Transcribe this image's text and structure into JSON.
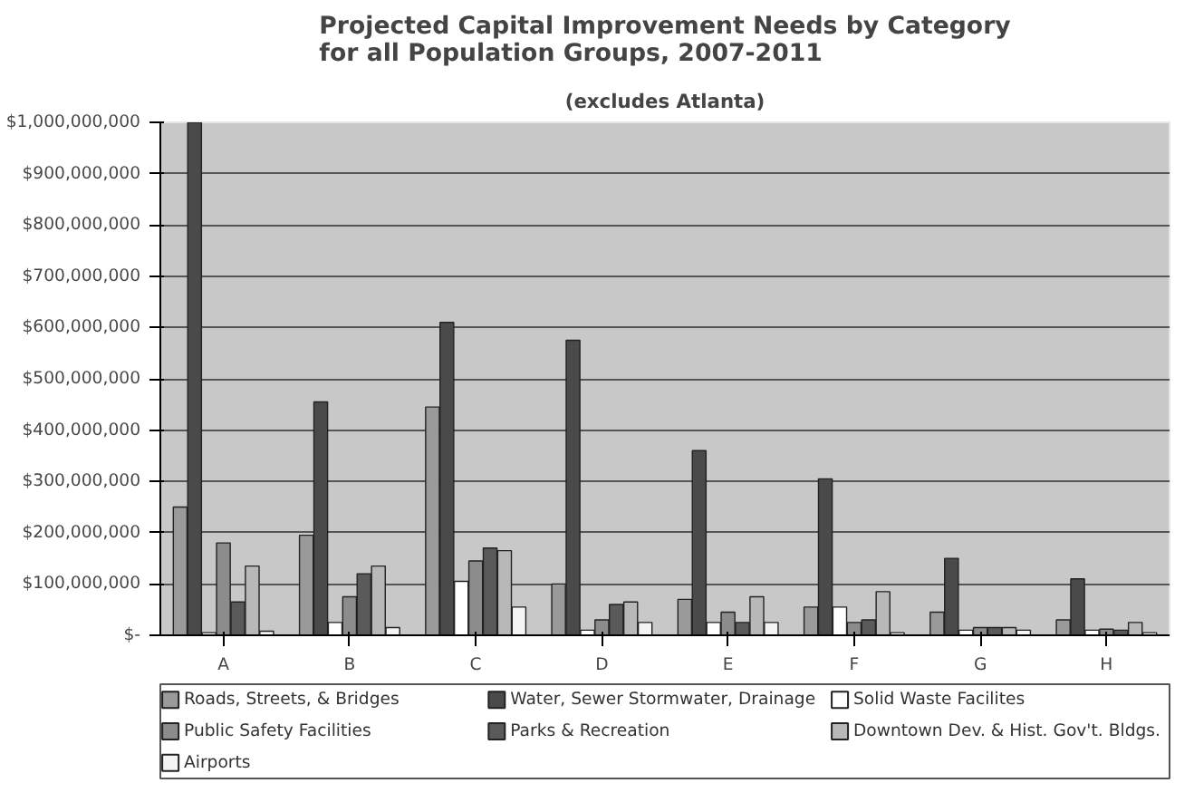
{
  "chart_data": {
    "type": "bar",
    "title": "Projected Capital Improvement Needs by Category\nfor all Population Groups, 2007-2011",
    "subtitle": "(excludes Atlanta)",
    "categories": [
      "A",
      "B",
      "C",
      "D",
      "E",
      "F",
      "G",
      "H"
    ],
    "series": [
      {
        "name": "Roads, Streets, & Bridges",
        "color": "#9a9a9a",
        "values": [
          250000000,
          195000000,
          445000000,
          100000000,
          70000000,
          55000000,
          45000000,
          30000000
        ]
      },
      {
        "name": "Water, Sewer Stormwater, Drainage",
        "color": "#4a4a4a",
        "values": [
          1000000000,
          455000000,
          610000000,
          575000000,
          360000000,
          305000000,
          150000000,
          110000000
        ]
      },
      {
        "name": "Solid Waste Facilites",
        "color": "#ffffff",
        "values": [
          5000000,
          25000000,
          105000000,
          10000000,
          25000000,
          55000000,
          10000000,
          10000000
        ]
      },
      {
        "name": "Public Safety Facilities",
        "color": "#8c8c8c",
        "values": [
          180000000,
          75000000,
          145000000,
          30000000,
          45000000,
          25000000,
          15000000,
          12000000
        ]
      },
      {
        "name": "Parks & Recreation",
        "color": "#5a5a5a",
        "values": [
          65000000,
          120000000,
          170000000,
          60000000,
          25000000,
          30000000,
          15000000,
          10000000
        ]
      },
      {
        "name": "Downtown Dev. & Hist. Gov't. Bldgs.",
        "color": "#b8b8b8",
        "values": [
          135000000,
          135000000,
          165000000,
          65000000,
          75000000,
          85000000,
          15000000,
          25000000
        ]
      },
      {
        "name": "Airports",
        "color": "#f4f4f4",
        "values": [
          8000000,
          15000000,
          55000000,
          25000000,
          25000000,
          5000000,
          10000000,
          5000000
        ]
      }
    ],
    "ylim": [
      0,
      1000000000
    ],
    "yticks": [
      {
        "value": 0,
        "label": "$-"
      },
      {
        "value": 100000000,
        "label": "$100,000,000"
      },
      {
        "value": 200000000,
        "label": "$200,000,000"
      },
      {
        "value": 300000000,
        "label": "$300,000,000"
      },
      {
        "value": 400000000,
        "label": "$400,000,000"
      },
      {
        "value": 500000000,
        "label": "$500,000,000"
      },
      {
        "value": 600000000,
        "label": "$600,000,000"
      },
      {
        "value": 700000000,
        "label": "$700,000,000"
      },
      {
        "value": 800000000,
        "label": "$800,000,000"
      },
      {
        "value": 900000000,
        "label": "$900,000,000"
      },
      {
        "value": 1000000000,
        "label": "$1,000,000,000"
      }
    ],
    "grid": "y",
    "legend": "bottom"
  }
}
